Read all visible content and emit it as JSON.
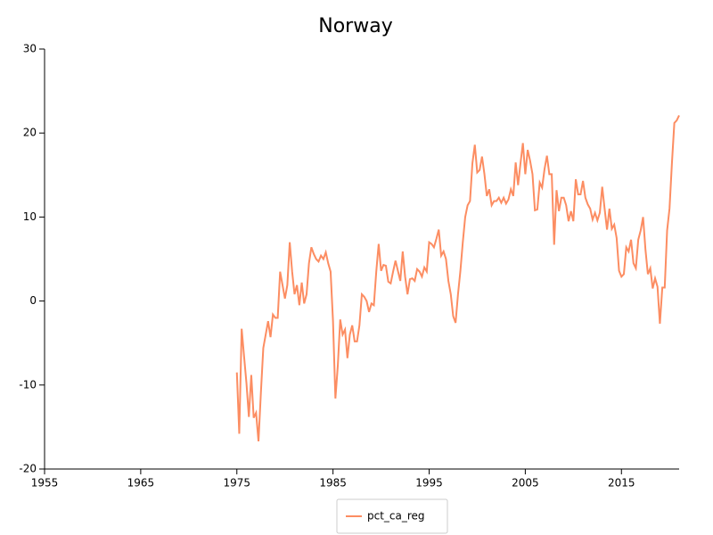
{
  "chart_data": {
    "type": "line",
    "title": "Norway",
    "x": [
      1975,
      1975.25,
      1975.5,
      1975.75,
      1976,
      1976.25,
      1976.5,
      1976.75,
      1977,
      1977.25,
      1977.5,
      1977.75,
      1978,
      1978.25,
      1978.5,
      1978.75,
      1979,
      1979.25,
      1979.5,
      1979.75,
      1980,
      1980.25,
      1980.5,
      1980.75,
      1981,
      1981.25,
      1981.5,
      1981.75,
      1982,
      1982.25,
      1982.5,
      1982.75,
      1983,
      1983.25,
      1983.5,
      1983.75,
      1984,
      1984.25,
      1984.5,
      1984.75,
      1985,
      1985.25,
      1985.5,
      1985.75,
      1986,
      1986.25,
      1986.5,
      1986.75,
      1987,
      1987.25,
      1987.5,
      1987.75,
      1988,
      1988.25,
      1988.5,
      1988.75,
      1989,
      1989.25,
      1989.5,
      1989.75,
      1990,
      1990.25,
      1990.5,
      1990.75,
      1991,
      1991.25,
      1991.5,
      1991.75,
      1992,
      1992.25,
      1992.5,
      1992.75,
      1993,
      1993.25,
      1993.5,
      1993.75,
      1994,
      1994.25,
      1994.5,
      1994.75,
      1995,
      1995.25,
      1995.5,
      1995.75,
      1996,
      1996.25,
      1996.5,
      1996.75,
      1997,
      1997.25,
      1997.5,
      1997.75,
      1998,
      1998.25,
      1998.5,
      1998.75,
      1999,
      1999.25,
      1999.5,
      1999.75,
      2000,
      2000.25,
      2000.5,
      2000.75,
      2001,
      2001.25,
      2001.5,
      2001.75,
      2002,
      2002.25,
      2002.5,
      2002.75,
      2003,
      2003.25,
      2003.5,
      2003.75,
      2004,
      2004.25,
      2004.5,
      2004.75,
      2005,
      2005.25,
      2005.5,
      2005.75,
      2006,
      2006.25,
      2006.5,
      2006.75,
      2007,
      2007.25,
      2007.5,
      2007.75,
      2008,
      2008.25,
      2008.5,
      2008.75,
      2009,
      2009.25,
      2009.5,
      2009.75,
      2010,
      2010.25,
      2010.5,
      2010.75,
      2011,
      2011.25,
      2011.5,
      2011.75,
      2012,
      2012.25,
      2012.5,
      2012.75,
      2013,
      2013.25,
      2013.5,
      2013.75,
      2014,
      2014.25,
      2014.5,
      2014.75,
      2015,
      2015.25,
      2015.5,
      2015.75,
      2016,
      2016.25,
      2016.5,
      2016.75,
      2017,
      2017.25,
      2017.5,
      2017.75,
      2018,
      2018.25,
      2018.5,
      2018.75,
      2019,
      2019.25,
      2019.5,
      2019.75,
      2020,
      2020.25,
      2020.5,
      2020.75,
      2021
    ],
    "series": [
      {
        "name": "pct_ca_reg",
        "color": "#fc8d62",
        "values": [
          -8.5,
          -15.8,
          -3.3,
          -6.6,
          -9.8,
          -13.8,
          -8.8,
          -13.9,
          -13.3,
          -16.7,
          -10.9,
          -5.6,
          -4.0,
          -2.4,
          -4.3,
          -1.6,
          -2.0,
          -2.0,
          3.5,
          1.9,
          0.3,
          1.9,
          7.0,
          3.5,
          0.8,
          1.9,
          -0.5,
          2.2,
          -0.3,
          0.8,
          4.5,
          6.4,
          5.6,
          5.0,
          4.7,
          5.4,
          5.0,
          5.8,
          4.5,
          3.5,
          -2.4,
          -11.6,
          -7.7,
          -2.2,
          -4.0,
          -3.4,
          -6.8,
          -4.0,
          -2.9,
          -4.8,
          -4.8,
          -2.9,
          0.8,
          0.5,
          0,
          -1.3,
          -0.3,
          -0.5,
          3.5,
          6.8,
          3.6,
          4.3,
          4.2,
          2.3,
          2.1,
          3.5,
          4.8,
          3.6,
          2.4,
          5.9,
          2.9,
          0.8,
          2.6,
          2.7,
          2.4,
          3.8,
          3.5,
          2.9,
          4.0,
          3.5,
          7.0,
          6.8,
          6.4,
          7.4,
          8.5,
          5.4,
          5.9,
          5.0,
          2.4,
          0.8,
          -1.8,
          -2.6,
          0.8,
          3.6,
          7.0,
          10.0,
          11.4,
          11.9,
          16.4,
          18.6,
          15.3,
          15.6,
          17.2,
          15.1,
          12.5,
          13.3,
          11.4,
          11.9,
          11.9,
          12.3,
          11.7,
          12.3,
          11.6,
          12.1,
          13.3,
          12.5,
          16.5,
          13.8,
          16.4,
          18.8,
          15.1,
          18.0,
          16.7,
          15.1,
          10.8,
          10.9,
          14.1,
          13.5,
          15.7,
          17.3,
          15.1,
          15.1,
          6.7,
          13.2,
          10.7,
          12.3,
          12.3,
          11.4,
          9.5,
          10.7,
          9.5,
          14.5,
          12.7,
          12.7,
          14.3,
          12.3,
          11.5,
          11.0,
          9.7,
          10.5,
          9.6,
          10.5,
          13.6,
          11.0,
          8.5,
          11.0,
          8.6,
          9.1,
          7.5,
          3.6,
          2.9,
          3.2,
          6.4,
          5.9,
          7.3,
          4.5,
          3.9,
          7.3,
          8.4,
          10.0,
          6.1,
          3.2,
          3.9,
          1.5,
          2.7,
          1.7,
          -2.7,
          1.6,
          1.6,
          8.4,
          11.0,
          16.4,
          21.2,
          21.5,
          22.1
        ]
      }
    ],
    "xlim": [
      1955,
      2021
    ],
    "xticks": [
      1955,
      1965,
      1975,
      1985,
      1995,
      2005,
      2015
    ],
    "ylim": [
      -20,
      30
    ],
    "yticks": [
      -20,
      -10,
      0,
      10,
      20,
      30
    ],
    "grid": false,
    "legend": "bottom"
  }
}
